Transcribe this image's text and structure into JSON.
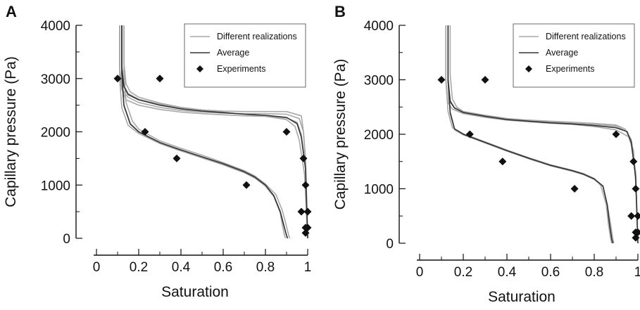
{
  "chart_data": [
    {
      "type": "line",
      "panel_label": "A",
      "xlabel": "Saturation",
      "ylabel": "Capillary pressure (Pa)",
      "xlim": [
        0,
        1
      ],
      "ylim": [
        0,
        4000
      ],
      "x_ticks": [
        "0",
        "0.2",
        "0.4",
        "0.6",
        "0.8",
        "1"
      ],
      "y_ticks": [
        "0",
        "1000",
        "2000",
        "3000",
        "4000"
      ],
      "legend": {
        "position": "top-right",
        "entries": [
          "Different realizations",
          "Average",
          "Experiments"
        ]
      },
      "series": [
        {
          "name": "Average",
          "kind": "average",
          "color": "#333333",
          "x": [
            0.12,
            0.12,
            0.13,
            0.15,
            0.2,
            0.3,
            0.4,
            0.5,
            0.6,
            0.7,
            0.8,
            0.9,
            0.95,
            0.97,
            0.99,
            1.0
          ],
          "y": [
            4000,
            3200,
            2850,
            2700,
            2600,
            2500,
            2430,
            2390,
            2360,
            2330,
            2310,
            2270,
            2150,
            1900,
            1300,
            0
          ]
        },
        {
          "name": "Average",
          "kind": "average",
          "color": "#333333",
          "x": [
            0.12,
            0.12,
            0.13,
            0.16,
            0.2,
            0.3,
            0.4,
            0.5,
            0.6,
            0.7,
            0.75,
            0.8,
            0.84,
            0.87,
            0.89,
            0.9,
            0.905
          ],
          "y": [
            4000,
            3100,
            2500,
            2150,
            2000,
            1800,
            1660,
            1530,
            1400,
            1250,
            1150,
            1000,
            800,
            500,
            200,
            50,
            0
          ]
        },
        {
          "kind": "realization",
          "color": "#a8a8a8",
          "x": [
            0.11,
            0.11,
            0.12,
            0.15,
            0.2,
            0.3,
            0.4,
            0.5,
            0.6,
            0.7,
            0.8,
            0.9,
            0.96,
            0.98,
            0.99,
            1.0
          ],
          "y": [
            4000,
            3200,
            2800,
            2650,
            2550,
            2460,
            2400,
            2370,
            2350,
            2340,
            2340,
            2330,
            2250,
            2000,
            1400,
            0
          ]
        },
        {
          "kind": "realization",
          "color": "#a8a8a8",
          "x": [
            0.13,
            0.13,
            0.14,
            0.16,
            0.2,
            0.3,
            0.4,
            0.5,
            0.6,
            0.7,
            0.8,
            0.9,
            0.94,
            0.96,
            0.985,
            1.0
          ],
          "y": [
            4000,
            3300,
            2900,
            2750,
            2650,
            2540,
            2460,
            2410,
            2370,
            2330,
            2290,
            2230,
            2100,
            1850,
            1200,
            0
          ]
        },
        {
          "kind": "realization",
          "color": "#a8a8a8",
          "x": [
            0.12,
            0.12,
            0.13,
            0.15,
            0.2,
            0.3,
            0.4,
            0.5,
            0.6,
            0.7,
            0.8,
            0.9,
            0.97,
            0.98,
            0.99,
            1.0
          ],
          "y": [
            4000,
            3250,
            2870,
            2720,
            2610,
            2520,
            2450,
            2410,
            2390,
            2380,
            2380,
            2380,
            2300,
            2000,
            1500,
            0
          ]
        },
        {
          "kind": "realization",
          "color": "#a8a8a8",
          "x": [
            0.11,
            0.11,
            0.12,
            0.14,
            0.2,
            0.3,
            0.4,
            0.5,
            0.6,
            0.7,
            0.8,
            0.9,
            0.95,
            0.97,
            0.99,
            1.0
          ],
          "y": [
            4000,
            3150,
            2800,
            2600,
            2500,
            2420,
            2370,
            2340,
            2320,
            2300,
            2290,
            2260,
            2180,
            1950,
            1300,
            0
          ]
        },
        {
          "kind": "realization",
          "color": "#a8a8a8",
          "x": [
            0.11,
            0.11,
            0.12,
            0.15,
            0.2,
            0.3,
            0.4,
            0.5,
            0.6,
            0.7,
            0.75,
            0.8,
            0.84,
            0.87,
            0.88,
            0.89,
            0.895
          ],
          "y": [
            4000,
            3000,
            2450,
            2120,
            1970,
            1780,
            1640,
            1510,
            1380,
            1230,
            1130,
            980,
            780,
            480,
            250,
            60,
            0
          ]
        },
        {
          "kind": "realization",
          "color": "#a8a8a8",
          "x": [
            0.13,
            0.13,
            0.14,
            0.17,
            0.2,
            0.3,
            0.4,
            0.5,
            0.6,
            0.7,
            0.75,
            0.8,
            0.85,
            0.88,
            0.9,
            0.91,
            0.915
          ],
          "y": [
            4000,
            3150,
            2550,
            2200,
            2050,
            1830,
            1690,
            1560,
            1420,
            1270,
            1170,
            1020,
            820,
            520,
            220,
            60,
            0
          ]
        },
        {
          "kind": "realization",
          "color": "#a8a8a8",
          "x": [
            0.12,
            0.12,
            0.13,
            0.16,
            0.2,
            0.3,
            0.4,
            0.5,
            0.6,
            0.7,
            0.75,
            0.8,
            0.84,
            0.87,
            0.89,
            0.9,
            0.905
          ],
          "y": [
            4000,
            3100,
            2480,
            2140,
            2000,
            1790,
            1650,
            1520,
            1390,
            1240,
            1140,
            990,
            790,
            500,
            200,
            50,
            0
          ]
        },
        {
          "name": "Experiments",
          "kind": "experiments",
          "x": [
            0.1,
            0.3,
            0.23,
            0.38,
            0.71,
            0.9,
            0.98,
            0.99,
            0.97,
            1.0,
            0.99,
            1.0,
            0.99
          ],
          "y": [
            3000,
            3000,
            2000,
            1500,
            1000,
            2000,
            1500,
            1000,
            500,
            500,
            200,
            200,
            100
          ]
        }
      ]
    },
    {
      "type": "line",
      "panel_label": "B",
      "xlabel": "Saturation",
      "ylabel": "Capillary pressure (Pa)",
      "xlim": [
        0,
        1
      ],
      "ylim": [
        0,
        4000
      ],
      "x_ticks": [
        "0",
        "0.2",
        "0.4",
        "0.6",
        "0.8",
        "1"
      ],
      "y_ticks": [
        "0",
        "1000",
        "2000",
        "3000",
        "4000"
      ],
      "legend": {
        "position": "top-right",
        "entries": [
          "Different realizations",
          "Average",
          "Experiments"
        ]
      },
      "series": [
        {
          "name": "Average",
          "kind": "average",
          "color": "#333333",
          "x": [
            0.13,
            0.13,
            0.14,
            0.16,
            0.2,
            0.3,
            0.4,
            0.5,
            0.6,
            0.7,
            0.8,
            0.9,
            0.95,
            0.97,
            0.99,
            1.0
          ],
          "y": [
            4000,
            3000,
            2600,
            2480,
            2400,
            2330,
            2270,
            2240,
            2210,
            2190,
            2160,
            2120,
            2050,
            1850,
            1200,
            0
          ]
        },
        {
          "name": "Average",
          "kind": "average",
          "color": "#333333",
          "x": [
            0.13,
            0.13,
            0.14,
            0.16,
            0.2,
            0.3,
            0.4,
            0.5,
            0.6,
            0.7,
            0.75,
            0.8,
            0.84,
            0.86,
            0.87,
            0.88,
            0.885
          ],
          "y": [
            4000,
            3000,
            2400,
            2100,
            2000,
            1850,
            1700,
            1560,
            1430,
            1330,
            1270,
            1180,
            1050,
            700,
            350,
            80,
            0
          ]
        },
        {
          "kind": "realization",
          "color": "#a8a8a8",
          "x": [
            0.12,
            0.12,
            0.13,
            0.15,
            0.2,
            0.3,
            0.4,
            0.5,
            0.6,
            0.7,
            0.8,
            0.9,
            0.96,
            0.98,
            0.99,
            1.0
          ],
          "y": [
            4000,
            3000,
            2580,
            2460,
            2380,
            2310,
            2260,
            2230,
            2200,
            2180,
            2140,
            2080,
            1950,
            1700,
            1100,
            0
          ]
        },
        {
          "kind": "realization",
          "color": "#a8a8a8",
          "x": [
            0.14,
            0.14,
            0.15,
            0.17,
            0.2,
            0.3,
            0.4,
            0.5,
            0.6,
            0.7,
            0.8,
            0.9,
            0.94,
            0.97,
            0.99,
            1.0
          ],
          "y": [
            4000,
            3100,
            2650,
            2500,
            2420,
            2350,
            2290,
            2260,
            2240,
            2220,
            2200,
            2170,
            2100,
            1900,
            1300,
            0
          ]
        },
        {
          "kind": "realization",
          "color": "#a8a8a8",
          "x": [
            0.13,
            0.13,
            0.14,
            0.16,
            0.2,
            0.3,
            0.4,
            0.5,
            0.6,
            0.7,
            0.8,
            0.9,
            0.95,
            0.97,
            0.99,
            1.0
          ],
          "y": [
            4000,
            3050,
            2620,
            2490,
            2400,
            2320,
            2280,
            2260,
            2230,
            2200,
            2180,
            2150,
            2050,
            1800,
            1250,
            0
          ]
        },
        {
          "kind": "realization",
          "color": "#a8a8a8",
          "x": [
            0.13,
            0.13,
            0.14,
            0.16,
            0.2,
            0.3,
            0.4,
            0.5,
            0.6,
            0.7,
            0.75,
            0.8,
            0.84,
            0.86,
            0.875,
            0.885,
            0.89
          ],
          "y": [
            4000,
            3000,
            2380,
            2080,
            1990,
            1840,
            1690,
            1550,
            1420,
            1320,
            1260,
            1170,
            1040,
            700,
            350,
            80,
            0
          ]
        },
        {
          "kind": "realization",
          "color": "#a8a8a8",
          "x": [
            0.12,
            0.12,
            0.13,
            0.15,
            0.2,
            0.3,
            0.4,
            0.5,
            0.6,
            0.7,
            0.75,
            0.8,
            0.83,
            0.855,
            0.865,
            0.875,
            0.88
          ],
          "y": [
            4000,
            3000,
            2420,
            2120,
            2010,
            1860,
            1710,
            1570,
            1440,
            1340,
            1280,
            1190,
            1060,
            710,
            350,
            80,
            0
          ]
        },
        {
          "name": "Experiments",
          "kind": "experiments",
          "x": [
            0.1,
            0.3,
            0.23,
            0.38,
            0.71,
            0.9,
            0.98,
            0.99,
            0.97,
            1.0,
            0.99,
            1.0,
            0.99
          ],
          "y": [
            3000,
            3000,
            2000,
            1500,
            1000,
            2000,
            1500,
            1000,
            500,
            500,
            200,
            200,
            100
          ]
        }
      ]
    }
  ]
}
